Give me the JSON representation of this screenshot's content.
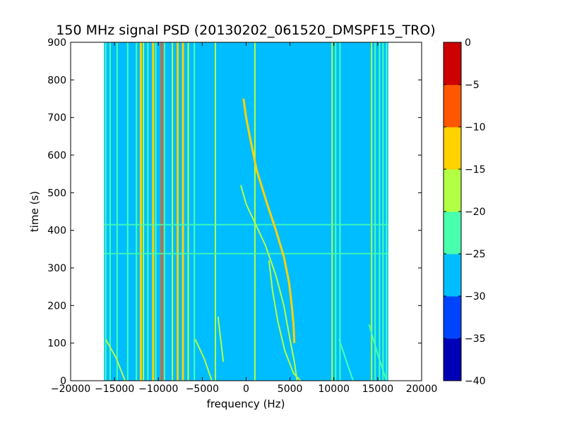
{
  "chart_data": {
    "type": "heatmap",
    "title": "150 MHz signal PSD (20130202_061520_DMSPF15_TRO)",
    "xlabel": "frequency (Hz)",
    "ylabel": "time (s)",
    "xlim": [
      -20000,
      20000
    ],
    "ylim": [
      0,
      900
    ],
    "xticks": [
      -20000,
      -15000,
      -10000,
      -5000,
      0,
      5000,
      10000,
      15000,
      20000
    ],
    "xtick_labels": [
      "−20000",
      "−15000",
      "−10000",
      "−5000",
      "0",
      "5000",
      "10000",
      "15000",
      "20000"
    ],
    "yticks": [
      0,
      100,
      200,
      300,
      400,
      500,
      600,
      700,
      800,
      900
    ],
    "ytick_labels": [
      "0",
      "100",
      "200",
      "300",
      "400",
      "500",
      "600",
      "700",
      "800",
      "900"
    ],
    "data_extent": {
      "freq": [
        -16200,
        16200
      ],
      "time": [
        0,
        900
      ]
    },
    "background_level": -27.5,
    "colorbar": {
      "levels": [
        -40,
        -35,
        -30,
        -25,
        -20,
        -15,
        -10,
        -5,
        0
      ],
      "tick_labels": [
        "−40",
        "−35",
        "−30",
        "−25",
        "−20",
        "−15",
        "−10",
        "−5",
        "0"
      ],
      "colors": [
        "#0000b6",
        "#0043ff",
        "#00bdff",
        "#48ffae",
        "#b2ff44",
        "#ffd200",
        "#ff5700",
        "#cc0000"
      ]
    },
    "vertical_lines": [
      {
        "freq": -16000,
        "level": -22.5
      },
      {
        "freq": -15500,
        "level": -22.5
      },
      {
        "freq": -14700,
        "level": -22.5
      },
      {
        "freq": -13500,
        "level": -22.5
      },
      {
        "freq": -12500,
        "level": -22.5
      },
      {
        "freq": -12000,
        "level": -12.5
      },
      {
        "freq": -11700,
        "level": -17.5
      },
      {
        "freq": -11200,
        "level": -22.5
      },
      {
        "freq": -10600,
        "level": -12.5
      },
      {
        "freq": -10300,
        "level": -22.5
      },
      {
        "freq": -9600,
        "level": -7.5
      },
      {
        "freq": -9300,
        "level": -22.5
      },
      {
        "freq": -8400,
        "level": -17.5
      },
      {
        "freq": -7800,
        "level": -12.5
      },
      {
        "freq": -7200,
        "level": -12.5
      },
      {
        "freq": -6600,
        "level": -17.5
      },
      {
        "freq": -5900,
        "level": -22.5
      },
      {
        "freq": -3500,
        "level": -17.5
      },
      {
        "freq": 1000,
        "level": -17.5
      },
      {
        "freq": 9800,
        "level": -17.5
      },
      {
        "freq": 10200,
        "level": -22.5
      },
      {
        "freq": 10700,
        "level": -22.5
      },
      {
        "freq": 14300,
        "level": -17.5
      },
      {
        "freq": 14700,
        "level": -22.5
      },
      {
        "freq": 15200,
        "level": -22.5
      },
      {
        "freq": 15600,
        "level": -22.5
      },
      {
        "freq": 16000,
        "level": -22.5
      }
    ],
    "horizontal_streaks": [
      {
        "time": 415,
        "level": -22.5
      },
      {
        "time": 338,
        "level": -22.5
      }
    ],
    "doppler_curves": [
      {
        "level": -12.5,
        "points": [
          [
            -300,
            750
          ],
          [
            0,
            700
          ],
          [
            500,
            640
          ],
          [
            1200,
            560
          ],
          [
            2400,
            470
          ],
          [
            3400,
            400
          ],
          [
            4300,
            330
          ],
          [
            4900,
            260
          ],
          [
            5200,
            200
          ],
          [
            5400,
            150
          ],
          [
            5500,
            100
          ]
        ]
      },
      {
        "level": -17.5,
        "points": [
          [
            -600,
            520
          ],
          [
            0,
            470
          ],
          [
            1000,
            420
          ],
          [
            2200,
            360
          ],
          [
            3400,
            280
          ],
          [
            4300,
            200
          ],
          [
            5000,
            110
          ],
          [
            5500,
            50
          ],
          [
            5800,
            0
          ]
        ]
      },
      {
        "level": -20.0,
        "points": [
          [
            2600,
            320
          ],
          [
            3000,
            240
          ],
          [
            3600,
            160
          ],
          [
            4400,
            80
          ],
          [
            5400,
            20
          ],
          [
            6200,
            0
          ]
        ]
      },
      {
        "level": -20.0,
        "points": [
          [
            -16000,
            110
          ],
          [
            -14800,
            60
          ],
          [
            -13800,
            0
          ]
        ]
      },
      {
        "level": -20.0,
        "points": [
          [
            -5800,
            110
          ],
          [
            -4800,
            60
          ],
          [
            -3900,
            0
          ]
        ]
      },
      {
        "level": -20.0,
        "points": [
          [
            -3200,
            170
          ],
          [
            -2900,
            110
          ],
          [
            -2600,
            50
          ]
        ]
      },
      {
        "level": -22.5,
        "points": [
          [
            10600,
            110
          ],
          [
            11600,
            40
          ],
          [
            12200,
            0
          ]
        ]
      },
      {
        "level": -22.5,
        "points": [
          [
            14000,
            150
          ],
          [
            15000,
            70
          ],
          [
            16000,
            0
          ]
        ]
      }
    ]
  }
}
